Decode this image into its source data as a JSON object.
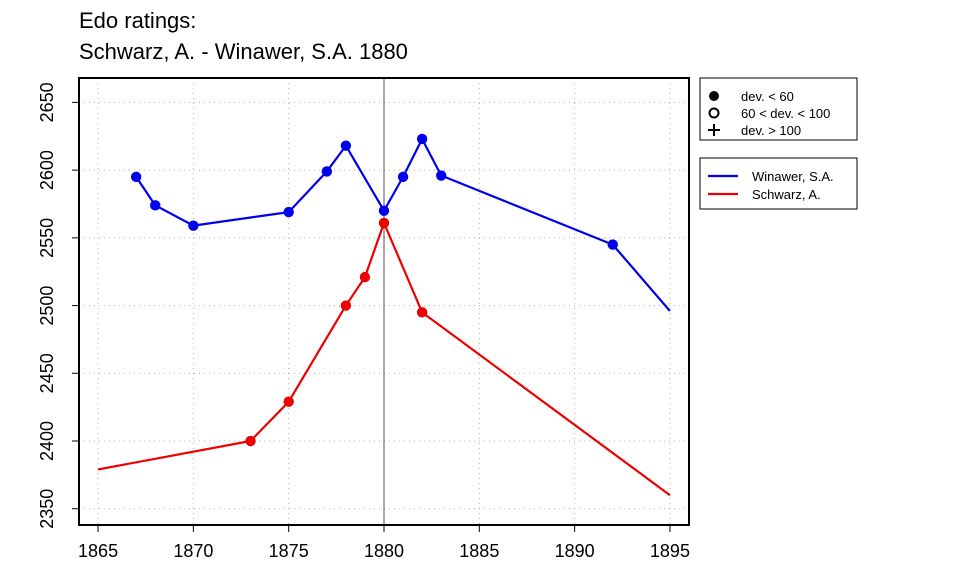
{
  "title_lines": [
    "Edo ratings:",
    "Schwarz, A. - Winawer, S.A. 1880"
  ],
  "chart_data": {
    "type": "line",
    "title": "Edo ratings:\nSchwarz, A. - Winawer, S.A. 1880",
    "xlabel": "",
    "ylabel": "",
    "xlim": [
      1864,
      1896
    ],
    "ylim": [
      2338,
      2668
    ],
    "x_ticks": [
      1865,
      1870,
      1875,
      1880,
      1885,
      1890,
      1895
    ],
    "y_ticks": [
      2350,
      2400,
      2450,
      2500,
      2550,
      2600,
      2650
    ],
    "grid": true,
    "vertical_marker": 1880,
    "series": [
      {
        "name": "Winawer, S.A.",
        "color": "#0000ee",
        "points": [
          {
            "x": 1867,
            "y": 2595,
            "marker": "filled"
          },
          {
            "x": 1868,
            "y": 2574,
            "marker": "filled"
          },
          {
            "x": 1870,
            "y": 2559,
            "marker": "filled"
          },
          {
            "x": 1875,
            "y": 2569,
            "marker": "filled"
          },
          {
            "x": 1877,
            "y": 2599,
            "marker": "filled"
          },
          {
            "x": 1878,
            "y": 2618,
            "marker": "filled"
          },
          {
            "x": 1880,
            "y": 2570,
            "marker": "filled"
          },
          {
            "x": 1881,
            "y": 2595,
            "marker": "filled"
          },
          {
            "x": 1882,
            "y": 2623,
            "marker": "filled"
          },
          {
            "x": 1883,
            "y": 2596,
            "marker": "filled"
          },
          {
            "x": 1892,
            "y": 2545,
            "marker": "filled"
          },
          {
            "x": 1895,
            "y": 2496,
            "marker": "none"
          }
        ]
      },
      {
        "name": "Schwarz, A.",
        "color": "#ee0000",
        "points": [
          {
            "x": 1865,
            "y": 2379,
            "marker": "none"
          },
          {
            "x": 1873,
            "y": 2400,
            "marker": "filled"
          },
          {
            "x": 1875,
            "y": 2429,
            "marker": "filled"
          },
          {
            "x": 1878,
            "y": 2500,
            "marker": "filled"
          },
          {
            "x": 1879,
            "y": 2521,
            "marker": "filled"
          },
          {
            "x": 1880,
            "y": 2561,
            "marker": "filled"
          },
          {
            "x": 1882,
            "y": 2495,
            "marker": "filled"
          },
          {
            "x": 1895,
            "y": 2360,
            "marker": "none"
          }
        ]
      }
    ],
    "marker_legend": {
      "placement": "top-right-outside",
      "entries": [
        {
          "symbol": "filled-circle",
          "label": "dev. < 60"
        },
        {
          "symbol": "open-circle",
          "label": "60 < dev. < 100"
        },
        {
          "symbol": "plus",
          "label": "dev. > 100"
        }
      ]
    },
    "series_legend": {
      "placement": "right-outside",
      "entries": [
        {
          "label": "Winawer, S.A.",
          "color": "#0000ee"
        },
        {
          "label": "Schwarz, A.",
          "color": "#ee0000"
        }
      ]
    }
  }
}
